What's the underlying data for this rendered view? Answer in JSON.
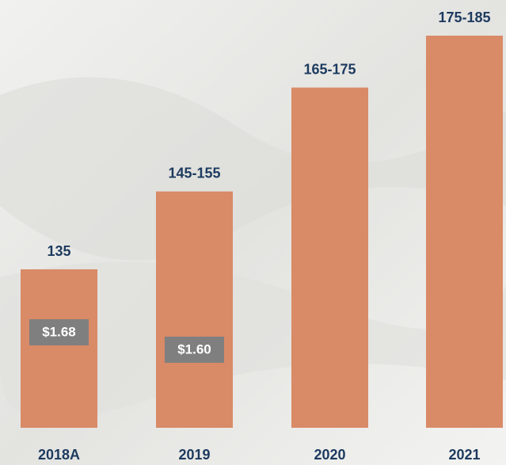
{
  "chart_data": {
    "type": "bar",
    "categories": [
      "2018A",
      "2019",
      "2020",
      "2021"
    ],
    "values": [
      135,
      150,
      170,
      180
    ],
    "value_labels": [
      "135",
      "145-155",
      "165-175",
      "175-185"
    ],
    "inner_labels": [
      "$1.68",
      "$1.60",
      null,
      null
    ],
    "color": "#d98a67"
  }
}
